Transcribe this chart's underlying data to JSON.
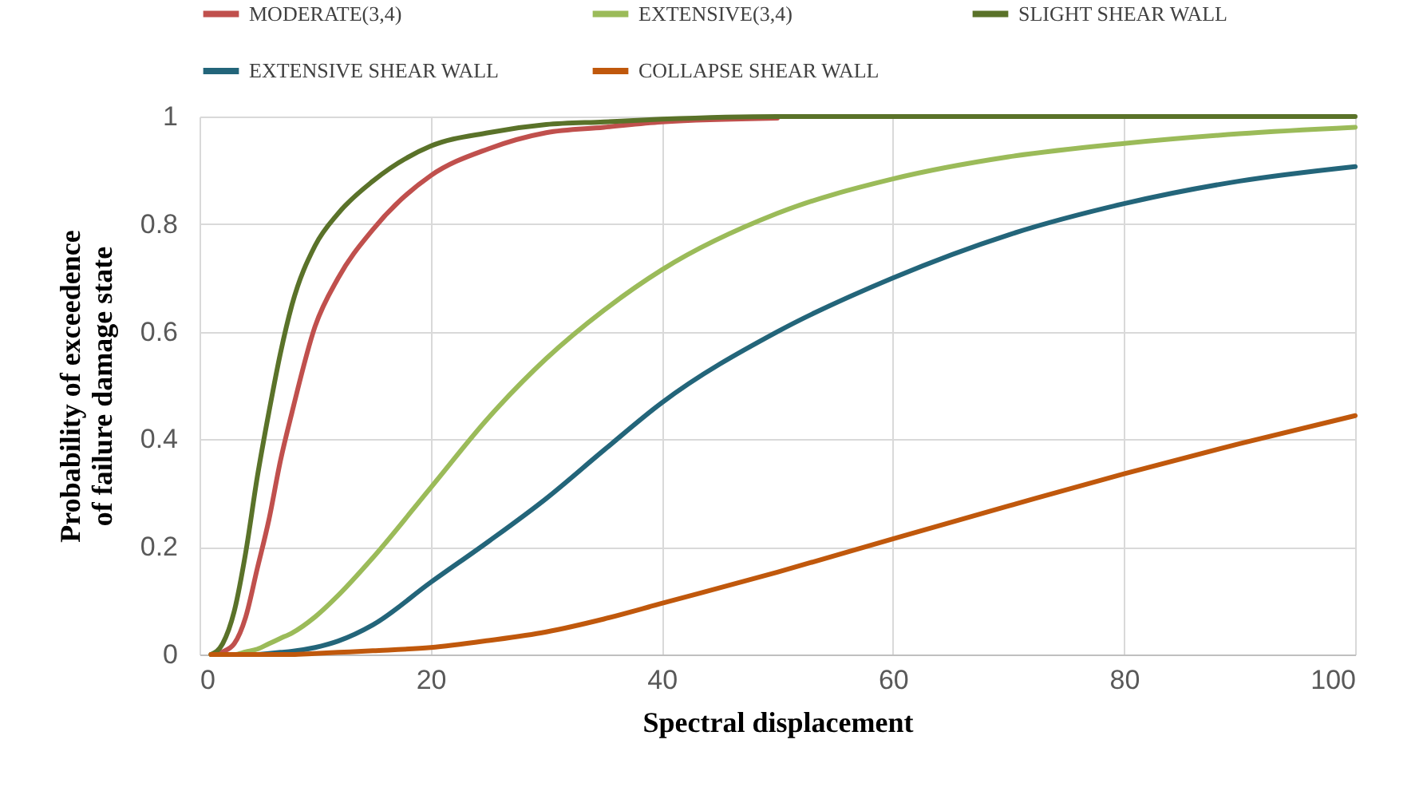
{
  "chart_data": {
    "type": "line",
    "xlabel": "Spectral displacement",
    "ylabel": "Probability of exceedence of failure damage state",
    "x": [
      1,
      2,
      3,
      4,
      5,
      6,
      7,
      8,
      10,
      12,
      15,
      20,
      25,
      30,
      35,
      40,
      50,
      60,
      70,
      80,
      90,
      100
    ],
    "series": [
      {
        "name": "MODERATE(3,4)",
        "color": "#c0504d",
        "values": [
          0,
          0.005,
          0.02,
          0.07,
          0.16,
          0.25,
          0.36,
          0.45,
          0.61,
          0.7,
          0.79,
          0.89,
          0.94,
          0.97,
          0.98,
          0.99,
          0.997,
          null,
          null,
          null,
          null,
          null
        ]
      },
      {
        "name": "EXTENSIVE(3,4)",
        "color": "#9bbb59",
        "values": [
          0,
          0,
          0,
          0.005,
          0.01,
          0.02,
          0.03,
          0.04,
          0.07,
          0.11,
          0.18,
          0.31,
          0.44,
          0.55,
          0.64,
          0.715,
          0.82,
          0.884,
          0.925,
          0.95,
          0.968,
          0.98
        ]
      },
      {
        "name": "SLIGHT SHEAR WALL",
        "color": "#5a7229",
        "values": [
          0,
          0.02,
          0.08,
          0.19,
          0.33,
          0.45,
          0.56,
          0.65,
          0.76,
          0.82,
          0.88,
          0.945,
          0.97,
          0.985,
          0.99,
          0.995,
          1,
          1,
          1,
          1,
          1,
          1
        ]
      },
      {
        "name": "EXTENSIVE SHEAR WALL",
        "color": "#23657a",
        "values": [
          null,
          null,
          null,
          0,
          0,
          0.002,
          0.004,
          0.006,
          0.013,
          0.025,
          0.055,
          0.134,
          0.21,
          0.29,
          0.38,
          0.468,
          0.6,
          0.7,
          0.78,
          0.838,
          0.88,
          0.907
        ]
      },
      {
        "name": "COLLAPSE SHEAR WALL",
        "color": "#c0580c",
        "values": [
          0,
          0,
          0,
          0,
          0,
          0,
          0,
          0,
          0.002,
          0.004,
          0.007,
          0.013,
          0.026,
          0.042,
          0.066,
          0.095,
          0.153,
          0.215,
          0.276,
          0.336,
          0.392,
          0.444
        ]
      }
    ],
    "xlim": [
      0,
      100
    ],
    "xticks": [
      0,
      20,
      40,
      60,
      80,
      100
    ],
    "ylim": [
      0,
      1
    ],
    "yticks": [
      0,
      0.2,
      0.4,
      0.6,
      0.8,
      1
    ],
    "grid": true,
    "legend": "top",
    "line_style": "solid"
  }
}
